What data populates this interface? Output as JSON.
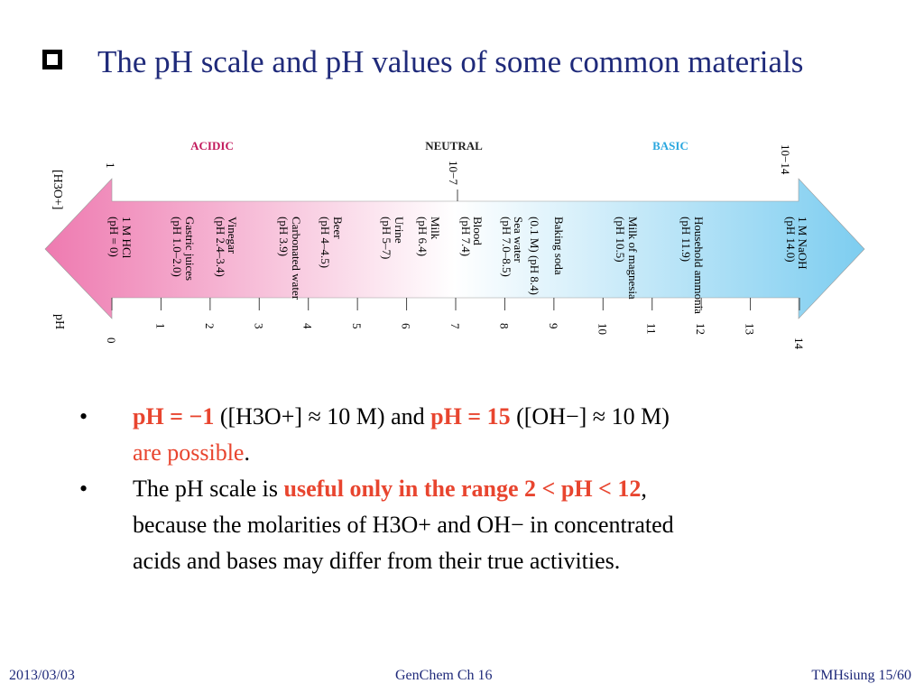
{
  "title": "The pH scale and pH values of some common materials",
  "diagram": {
    "labels": {
      "acidic": "ACIDIC",
      "neutral": "NEUTRAL",
      "basic": "BASIC",
      "h3o_axis": "[H3O+]",
      "ph_axis": "pH",
      "conc_left": "1",
      "conc_mid": "10−7",
      "conc_right": "10−14"
    },
    "colors": {
      "acid": "#ee7ab0",
      "neutral": "#ffffff",
      "base": "#7dcdf0",
      "acidic_text": "#c2185b",
      "basic_text": "#2aa7df"
    },
    "ph_ticks": [
      "0",
      "1",
      "2",
      "3",
      "4",
      "5",
      "6",
      "7",
      "8",
      "9",
      "10",
      "11",
      "12",
      "13",
      "14"
    ],
    "materials": [
      {
        "name": "1 M HCl",
        "value": "(pH = 0)"
      },
      {
        "name": "Gastric juices",
        "value": "(pH 1.0–2.0)"
      },
      {
        "name": "Vinegar",
        "value": "(pH 2.4–3.4)"
      },
      {
        "name": "Carbonated water",
        "value": "(pH 3.9)"
      },
      {
        "name": "Beer",
        "value": "(pH 4–4.5)"
      },
      {
        "name": "Urine",
        "value": "(pH 5–7)"
      },
      {
        "name": "Milk",
        "value": "(pH 6.4)"
      },
      {
        "name": "Blood",
        "value": "(pH 7.4)"
      },
      {
        "name": "Sea water",
        "value": "(pH 7.0–8.5)"
      },
      {
        "name": "Baking soda",
        "value": "(0.1 M) (pH 8.4)"
      },
      {
        "name": "Milk of magnesia",
        "value": "(pH 10.5)"
      },
      {
        "name": "Household ammonia",
        "value": "(pH 11.9)"
      },
      {
        "name": "1 M NaOH",
        "value": "(pH 14.0)"
      }
    ]
  },
  "bullets": {
    "b1": {
      "ph_minus": "pH = −1",
      "paren1": "([H3O+] ≈ 10 M) and",
      "ph_plus": "pH = 15",
      "paren2": "([OH−] ≈ 10 M)",
      "possible": "are possible",
      "period": "."
    },
    "b2": {
      "lead": "The pH scale is",
      "highlight": "useful only in the range 2 < pH < 12",
      "comma": ",",
      "line2a": "because the molarities of H3O+ and OH− in concentrated",
      "line3": "acids and bases may differ from their true activities."
    }
  },
  "footer": {
    "date": "2013/03/03",
    "course": "GenChem Ch 16",
    "page": "TMHsiung 15/60"
  }
}
